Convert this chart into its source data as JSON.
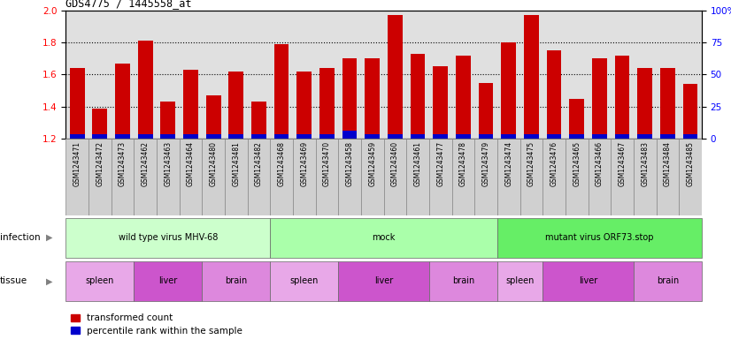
{
  "title": "GDS4775 / 1445558_at",
  "samples": [
    "GSM1243471",
    "GSM1243472",
    "GSM1243473",
    "GSM1243462",
    "GSM1243463",
    "GSM1243464",
    "GSM1243480",
    "GSM1243481",
    "GSM1243482",
    "GSM1243468",
    "GSM1243469",
    "GSM1243470",
    "GSM1243458",
    "GSM1243459",
    "GSM1243460",
    "GSM1243461",
    "GSM1243477",
    "GSM1243478",
    "GSM1243479",
    "GSM1243474",
    "GSM1243475",
    "GSM1243476",
    "GSM1243465",
    "GSM1243466",
    "GSM1243467",
    "GSM1243483",
    "GSM1243484",
    "GSM1243485"
  ],
  "red_values": [
    1.64,
    1.39,
    1.67,
    1.81,
    1.43,
    1.63,
    1.47,
    1.62,
    1.43,
    1.79,
    1.62,
    1.64,
    1.7,
    1.7,
    1.97,
    1.73,
    1.65,
    1.72,
    1.55,
    1.8,
    1.97,
    1.75,
    1.45,
    1.7,
    1.72,
    1.64,
    1.64,
    1.54
  ],
  "blue_values": [
    0.03,
    0.03,
    0.03,
    0.03,
    0.03,
    0.03,
    0.03,
    0.03,
    0.03,
    0.03,
    0.03,
    0.03,
    0.05,
    0.03,
    0.03,
    0.03,
    0.03,
    0.03,
    0.03,
    0.03,
    0.03,
    0.03,
    0.03,
    0.03,
    0.03,
    0.03,
    0.03,
    0.03
  ],
  "ybase": 1.2,
  "ylim_left": [
    1.2,
    2.0
  ],
  "ylim_right": [
    0,
    100
  ],
  "yticks_left": [
    1.2,
    1.4,
    1.6,
    1.8,
    2.0
  ],
  "yticks_right": [
    0,
    25,
    50,
    75,
    100
  ],
  "grid_lines": [
    1.4,
    1.6,
    1.8
  ],
  "infection_groups": [
    {
      "label": "wild type virus MHV-68",
      "start": 0,
      "end": 9,
      "color": "#CCFFCC"
    },
    {
      "label": "mock",
      "start": 9,
      "end": 19,
      "color": "#CCFFCC"
    },
    {
      "label": "mutant virus ORF73.stop",
      "start": 19,
      "end": 28,
      "color": "#66DD66"
    }
  ],
  "tissue_groups": [
    {
      "label": "spleen",
      "start": 0,
      "end": 3,
      "color": "#EE82EE"
    },
    {
      "label": "liver",
      "start": 3,
      "end": 6,
      "color": "#DD66DD"
    },
    {
      "label": "brain",
      "start": 6,
      "end": 9,
      "color": "#EE82EE"
    },
    {
      "label": "spleen",
      "start": 9,
      "end": 12,
      "color": "#EE82EE"
    },
    {
      "label": "liver",
      "start": 12,
      "end": 16,
      "color": "#DD66DD"
    },
    {
      "label": "brain",
      "start": 16,
      "end": 19,
      "color": "#EE82EE"
    },
    {
      "label": "spleen",
      "start": 19,
      "end": 21,
      "color": "#EE82EE"
    },
    {
      "label": "liver",
      "start": 21,
      "end": 25,
      "color": "#DD66DD"
    },
    {
      "label": "brain",
      "start": 25,
      "end": 28,
      "color": "#EE82EE"
    }
  ],
  "bar_color_red": "#CC0000",
  "bar_color_blue": "#0000CC",
  "xtick_bg": "#D0D0D0",
  "legend_red": "transformed count",
  "legend_blue": "percentile rank within the sample",
  "infection_label": "infection",
  "tissue_label": "tissue"
}
